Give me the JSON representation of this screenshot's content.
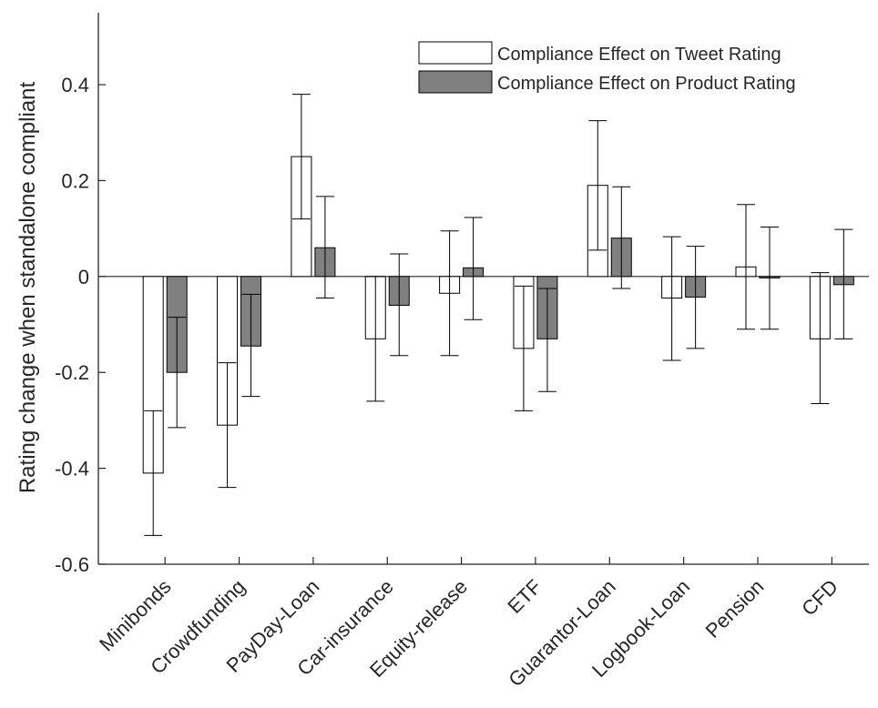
{
  "chart_data": {
    "type": "bar",
    "title": "",
    "xlabel": "",
    "ylabel": "Rating change when standalone compliant",
    "ylim": [
      -0.6,
      0.55
    ],
    "yticks": [
      -0.6,
      -0.4,
      -0.2,
      0,
      0.2,
      0.4
    ],
    "ytick_labels": [
      "-0.6",
      "-0.4",
      "-0.2",
      "0",
      "0.2",
      "0.4"
    ],
    "grid": false,
    "legend_position": "top-right",
    "categories": [
      "Minibonds",
      "Crowdfunding",
      "PayDay-Loan",
      "Car-insurance",
      "Equity-release",
      "ETF",
      "Guarantor-Loan",
      "Logbook-Loan",
      "Pension",
      "CFD"
    ],
    "series": [
      {
        "name": "Compliance Effect on Tweet Rating",
        "color": "#ffffff",
        "values": [
          -0.41,
          -0.31,
          0.25,
          -0.13,
          -0.035,
          -0.15,
          0.19,
          -0.045,
          0.02,
          -0.13
        ],
        "error_low": [
          -0.54,
          -0.44,
          0.12,
          -0.26,
          -0.165,
          -0.28,
          0.055,
          -0.175,
          -0.11,
          -0.265
        ],
        "error_high": [
          -0.28,
          -0.18,
          0.38,
          0.0,
          0.095,
          -0.02,
          0.325,
          0.083,
          0.15,
          0.008
        ]
      },
      {
        "name": "Compliance Effect on Product Rating",
        "color": "#808080",
        "values": [
          -0.2,
          -0.145,
          0.06,
          -0.06,
          0.018,
          -0.13,
          0.08,
          -0.043,
          -0.003,
          -0.017
        ],
        "error_low": [
          -0.315,
          -0.25,
          -0.045,
          -0.165,
          -0.09,
          -0.24,
          -0.025,
          -0.15,
          -0.11,
          -0.13
        ],
        "error_high": [
          -0.085,
          -0.037,
          0.167,
          0.047,
          0.123,
          -0.025,
          0.187,
          0.063,
          0.103,
          0.098
        ]
      }
    ]
  }
}
